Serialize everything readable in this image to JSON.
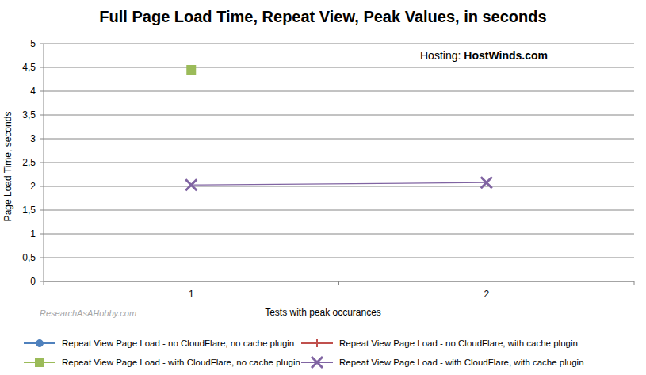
{
  "chart_data": {
    "type": "line",
    "title": "Full Page Load Time, Repeat View, Peak Values, in seconds",
    "x_label": "Tests with peak occurances",
    "y_label": "Page Load Time, seconds",
    "annotations": [
      "Hosting:",
      "HostWinds.com",
      "ResearchAsAHobby.com"
    ],
    "categories": [
      "1",
      "2"
    ],
    "series": [
      {
        "name": "Repeat View Page Load - no CloudFlare, no cache plugin",
        "color": "#4f81bd",
        "marker": "circle",
        "line_style": "solid",
        "values": [
          null,
          null
        ]
      },
      {
        "name": "Repeat View Page Load - no CloudFlare, with cache plugin",
        "color": "#c0504d",
        "marker": "plus",
        "line_style": "solid",
        "values": [
          null,
          null
        ]
      },
      {
        "name": "Repeat View Page Load - with CloudFlare, no cache plugin",
        "color": "#9bbb59",
        "marker": "square",
        "line_style": "solid",
        "values": [
          4.45,
          null
        ]
      },
      {
        "name": "Repeat View Page Load - with CloudFlare, with cache plugin",
        "color": "#8064a2",
        "marker": "x",
        "line_style": "solid",
        "values": [
          2.03,
          2.08
        ]
      }
    ],
    "ylim": [
      0,
      5
    ],
    "yticks": [
      0,
      {
        "value": 0.5,
        "label": "0,5"
      },
      1,
      {
        "value": 1.5,
        "label": "1,5"
      },
      2,
      {
        "value": 2.5,
        "label": "2,5"
      },
      3,
      {
        "value": 3.5,
        "label": "3,5"
      },
      4,
      {
        "value": 4.5,
        "label": "4,5"
      },
      5
    ],
    "grid": true,
    "legend": "bottom"
  }
}
